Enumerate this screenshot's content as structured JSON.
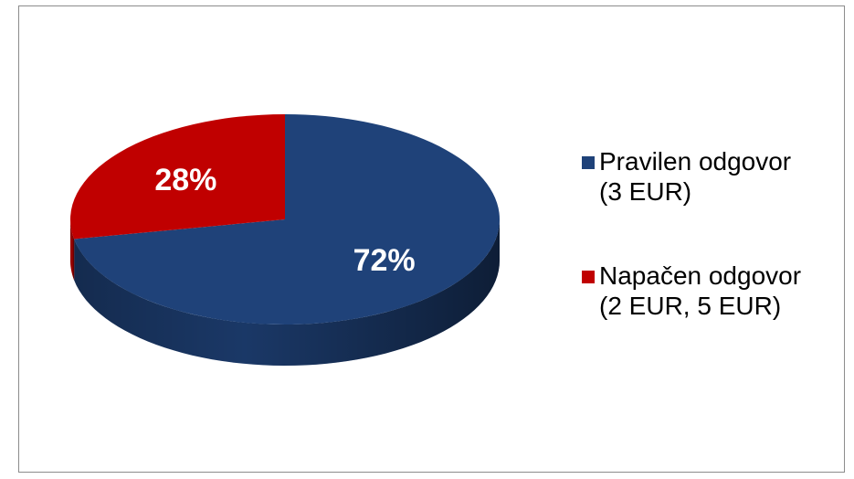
{
  "chart_data": {
    "type": "pie",
    "categories": [
      "Pravilen odgovor\n(3 EUR)",
      "Napačen odgovor\n(2 EUR, 5 EUR)"
    ],
    "values": [
      72,
      28
    ],
    "value_labels": [
      "72%",
      "28%"
    ],
    "colors": [
      "#1f4279",
      "#c00000"
    ],
    "legend": "right"
  }
}
